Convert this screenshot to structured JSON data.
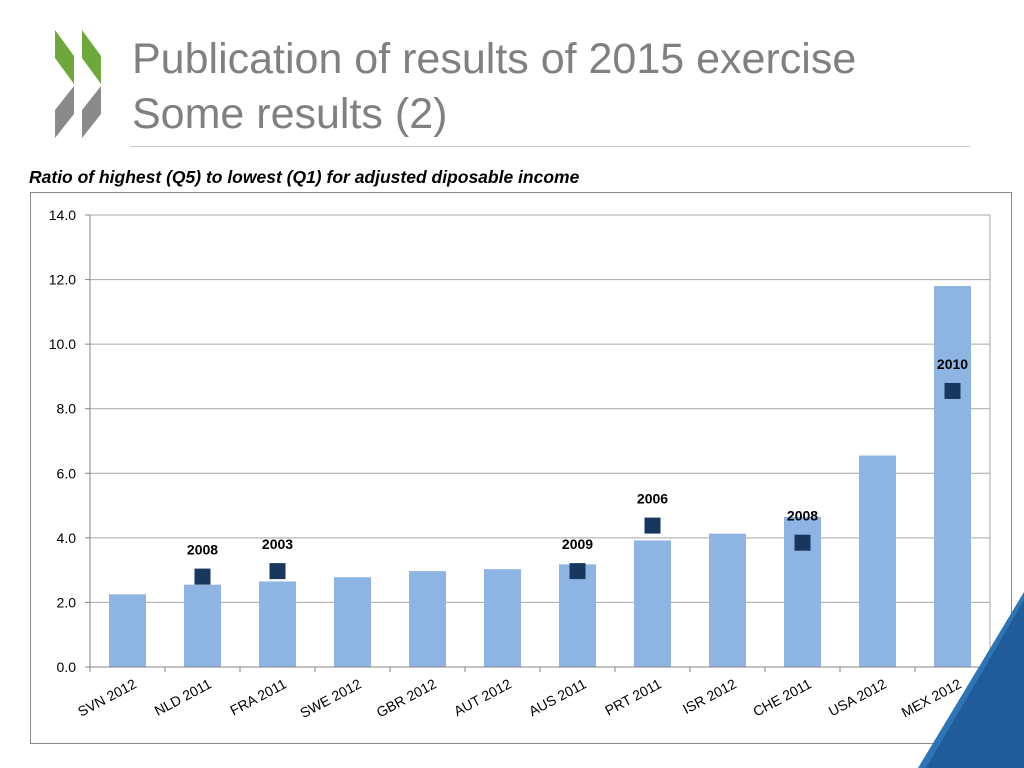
{
  "slide": {
    "title_line1": "Publication of results of 2015 exercise",
    "title_line2": "Some results (2)",
    "chart_caption": "Ratio of highest (Q5) to lowest (Q1) for adjusted diposable income"
  },
  "logo": {
    "icon": "oecd-chevron-logo",
    "colors": [
      "#6ea83a",
      "#8a8a8a"
    ]
  },
  "colors": {
    "bar": "#8db4e2",
    "marker": "#17375e",
    "grid": "#a6a6a6",
    "axis": "#868686",
    "title": "#808080",
    "corner_accent": "#1f5c99",
    "corner_light": "#2e75b6"
  },
  "chart_data": {
    "type": "bar",
    "categories": [
      "SVN 2012",
      "NLD 2011",
      "FRA 2011",
      "SWE 2012",
      "GBR 2012",
      "AUT 2012",
      "AUS 2011",
      "PRT 2011",
      "ISR 2012",
      "CHE 2011",
      "USA 2012",
      "MEX 2012"
    ],
    "series": [
      {
        "values": [
          2.25,
          2.55,
          2.65,
          2.78,
          2.97,
          3.03,
          3.18,
          3.92,
          4.13,
          4.65,
          6.55,
          11.8
        ]
      },
      {
        "type": "scatter",
        "values": [
          null,
          2.8,
          2.97,
          null,
          null,
          null,
          2.97,
          4.38,
          null,
          3.85,
          null,
          8.55
        ]
      }
    ],
    "marker_labels": [
      "",
      "2008",
      "2003",
      "",
      "",
      "",
      "2009",
      "2006",
      "",
      "2008",
      "",
      "2010"
    ],
    "ylim": [
      0,
      14
    ],
    "yticks": [
      "0.0",
      "2.0",
      "4.0",
      "6.0",
      "8.0",
      "10.0",
      "12.0",
      "14.0"
    ],
    "grid": true,
    "xlabel": "",
    "ylabel": ""
  }
}
